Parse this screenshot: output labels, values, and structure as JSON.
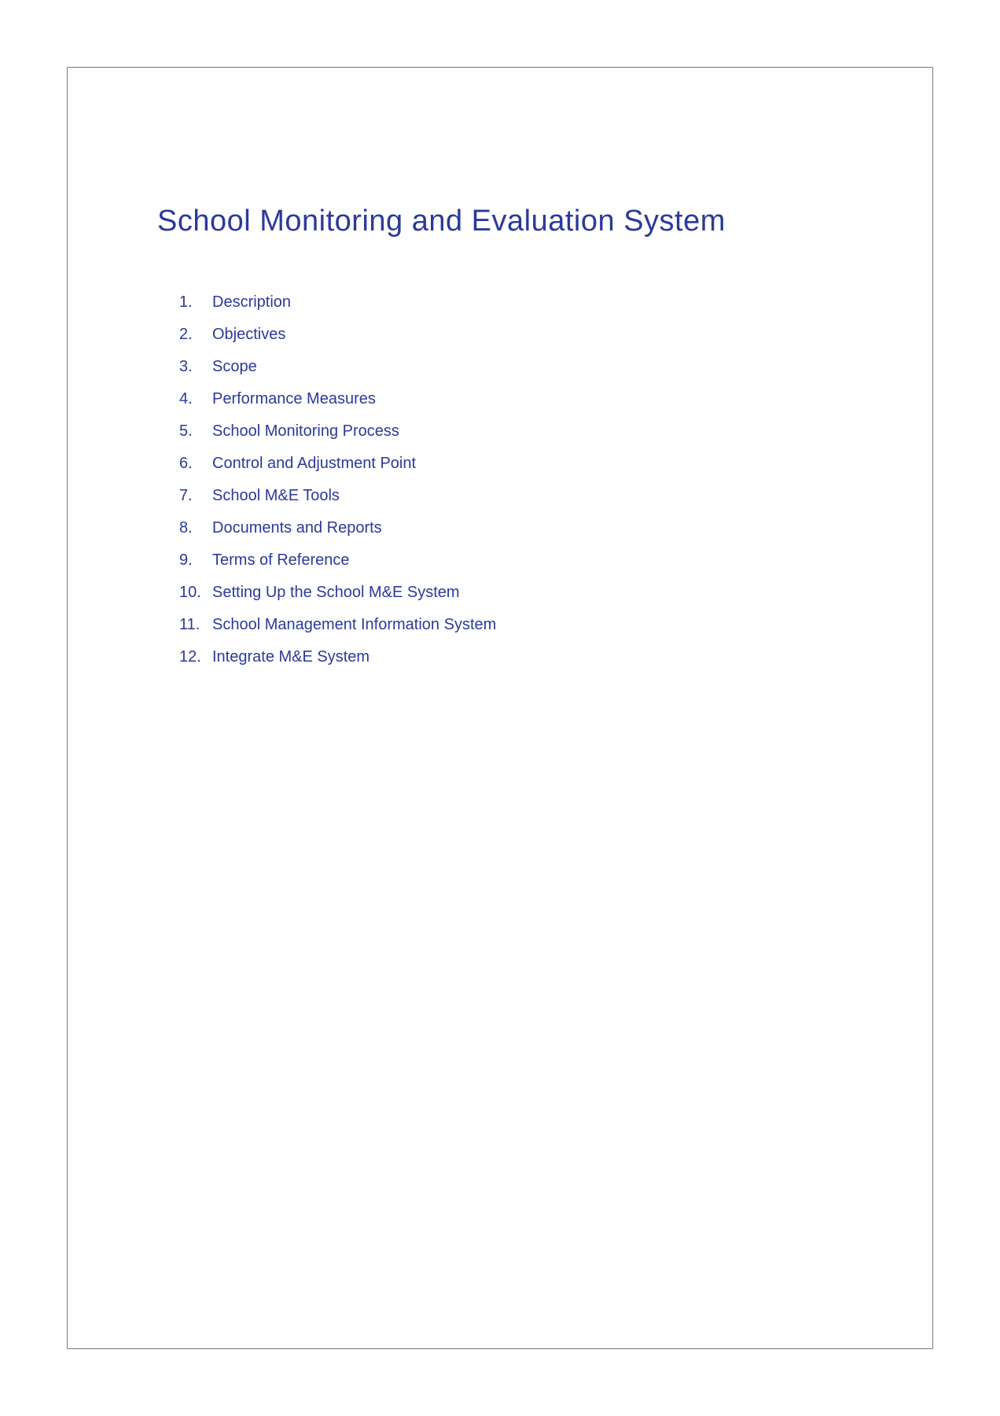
{
  "title": "School Monitoring and Evaluation System",
  "colors": {
    "text": "#2a3a9a",
    "border": "#7a7a8a",
    "background": "#ffffff"
  },
  "typography": {
    "title_fontsize": 38,
    "item_fontsize": 20,
    "font_family": "Century Gothic"
  },
  "toc": {
    "items": [
      {
        "number": "1.",
        "label": "Description"
      },
      {
        "number": "2.",
        "label": "Objectives"
      },
      {
        "number": "3.",
        "label": "Scope"
      },
      {
        "number": "4.",
        "label": "Performance Measures"
      },
      {
        "number": "5.",
        "label": "School Monitoring Process"
      },
      {
        "number": "6.",
        "label": "Control and Adjustment Point"
      },
      {
        "number": "7.",
        "label": "School M&E Tools"
      },
      {
        "number": "8.",
        "label": "Documents and Reports"
      },
      {
        "number": "9.",
        "label": "Terms of Reference"
      },
      {
        "number": "10.",
        "label": "Setting Up the School M&E System"
      },
      {
        "number": "11.",
        "label": "School Management Information System"
      },
      {
        "number": "12.",
        "label": "Integrate M&E System"
      }
    ]
  }
}
